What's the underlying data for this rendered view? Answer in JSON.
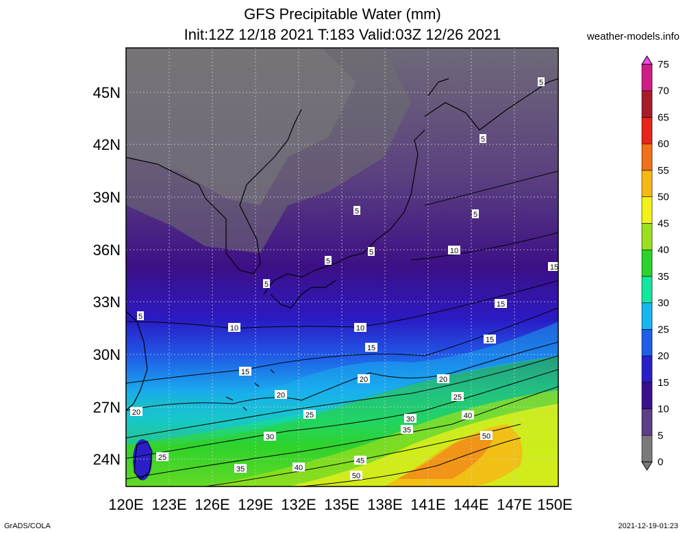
{
  "header": {
    "title_line1": "GFS Precipitable Water (mm)",
    "title_line2": "Init:12Z 12/18 2021 T:183 Valid:03Z 12/26 2021",
    "site": "weather-models.info"
  },
  "footer": {
    "left": "GrADS/COLA",
    "right": "2021-12-19-01:23"
  },
  "map": {
    "lon_ticks": [
      "120E",
      "123E",
      "126E",
      "129E",
      "132E",
      "135E",
      "138E",
      "141E",
      "144E",
      "147E",
      "150E"
    ],
    "lat_ticks": [
      "24N",
      "27N",
      "30N",
      "33N",
      "36N",
      "39N",
      "42N",
      "45N"
    ],
    "contour_labels": [
      "5",
      "5",
      "5",
      "5",
      "5",
      "5",
      "5",
      "5",
      "10",
      "10",
      "10",
      "15",
      "15",
      "15",
      "15",
      "15",
      "20",
      "20",
      "20",
      "20",
      "20",
      "25",
      "25",
      "25",
      "30",
      "30",
      "35",
      "35",
      "40",
      "40",
      "45",
      "50",
      "50"
    ]
  },
  "colorbar": {
    "labels": [
      "0",
      "5",
      "10",
      "15",
      "20",
      "25",
      "30",
      "35",
      "40",
      "45",
      "50",
      "55",
      "60",
      "65",
      "70",
      "75"
    ],
    "colors": [
      "#7a7a7a",
      "#5b3f87",
      "#3a0f8c",
      "#2a1fc6",
      "#1f5fe8",
      "#18b6f0",
      "#14e6a0",
      "#2ad42a",
      "#9be01e",
      "#f2f21a",
      "#f6b814",
      "#f2701a",
      "#e8241c",
      "#a81c2a",
      "#d01c86",
      "#f04ae6"
    ]
  }
}
